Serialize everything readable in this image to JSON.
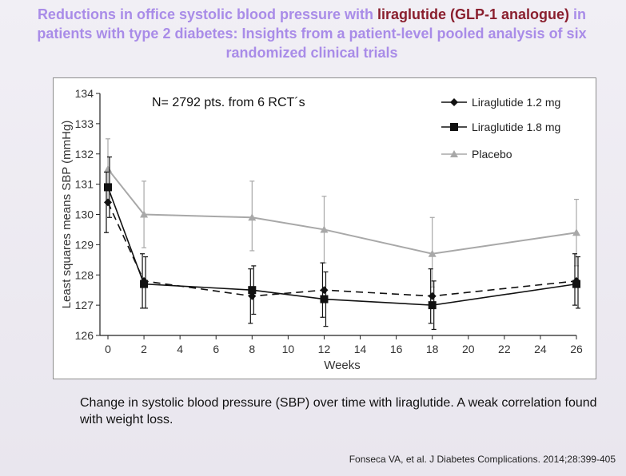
{
  "slide": {
    "title_part1": "Reductions in office systolic blood pressure with ",
    "title_highlight1": "liraglutide (GLP-1 analogue)",
    "title_part2": " in patients with type 2 diabetes: Insights from a patient-level pooled analysis of six randomized clinical trials",
    "caption": "Change in systolic blood pressure (SBP) over time with liraglutide. A weak correlation found with weight loss.",
    "reference": "Fonseca VA, et al. J Diabetes Complications. 2014;28:399-405",
    "title_color": "#a98ce8",
    "highlight_color": "#8a1f2e"
  },
  "chart_data": {
    "type": "line",
    "annotation": "N= 2792 pts. from 6 RCT´s",
    "xlabel": "Weeks",
    "ylabel": "Least squares means SBP (mmHg)",
    "xlim": [
      0,
      26
    ],
    "ylim": [
      126,
      134
    ],
    "xticks": [
      0,
      2,
      4,
      6,
      8,
      10,
      12,
      14,
      16,
      18,
      20,
      22,
      24,
      26
    ],
    "yticks": [
      126,
      127,
      128,
      129,
      130,
      131,
      132,
      133,
      134
    ],
    "grid": false,
    "legend": "top-right",
    "x": [
      0,
      2,
      8,
      12,
      18,
      26
    ],
    "series": [
      {
        "name": "Liraglutide 1.2 mg",
        "color": "#111111",
        "line": "dashed",
        "marker": "diamond",
        "values": [
          130.4,
          127.8,
          127.3,
          127.5,
          127.3,
          127.8
        ],
        "err_low": [
          129.4,
          126.9,
          126.4,
          126.6,
          126.4,
          127.0
        ],
        "err_high": [
          131.4,
          128.7,
          128.2,
          128.4,
          128.2,
          128.7
        ]
      },
      {
        "name": "Liraglutide 1.8 mg",
        "color": "#111111",
        "line": "solid",
        "marker": "square",
        "values": [
          130.9,
          127.7,
          127.5,
          127.2,
          127.0,
          127.7
        ],
        "err_low": [
          129.9,
          126.9,
          126.7,
          126.3,
          126.2,
          126.9
        ],
        "err_high": [
          131.9,
          128.6,
          128.3,
          128.1,
          127.8,
          128.6
        ]
      },
      {
        "name": "Placebo",
        "color": "#a8a8a8",
        "line": "solid",
        "marker": "triangle",
        "values": [
          131.5,
          130.0,
          129.9,
          129.5,
          128.7,
          129.4
        ],
        "err_low": [
          130.4,
          128.9,
          128.8,
          128.4,
          127.6,
          128.3
        ],
        "err_high": [
          132.5,
          131.1,
          131.1,
          130.6,
          129.9,
          130.5
        ]
      }
    ]
  }
}
